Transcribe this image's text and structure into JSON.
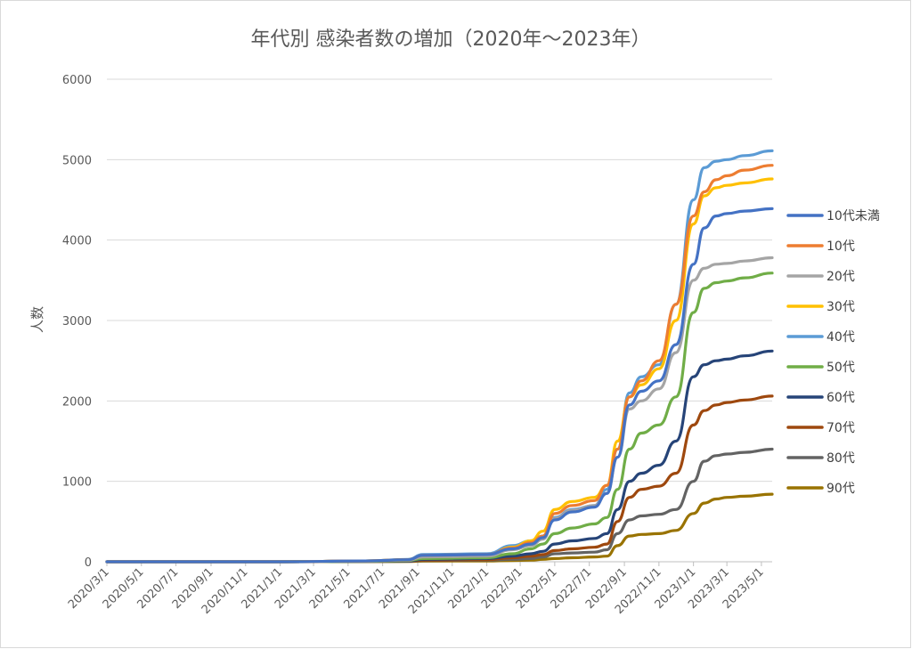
{
  "chart_data": {
    "type": "line",
    "title": "年代別 感染者数の増加（2020年〜2023年）",
    "xlabel": "",
    "ylabel": "人数",
    "ylim": [
      0,
      6000
    ],
    "yticks": [
      "0",
      "1000",
      "2000",
      "3000",
      "4000",
      "5000",
      "6000"
    ],
    "xlim": [
      "2020-03-01",
      "2023-05-20"
    ],
    "x_tick_labels": [
      "2020/3/1",
      "2020/5/1",
      "2020/7/1",
      "2020/9/1",
      "2020/11/1",
      "2021/1/1",
      "2021/3/1",
      "2021/5/1",
      "2021/7/1",
      "2021/9/1",
      "2021/11/1",
      "2022/1/1",
      "2022/3/1",
      "2022/5/1",
      "2022/7/1",
      "2022/9/1",
      "2022/11/1",
      "2023/1/1",
      "2023/3/1",
      "2023/5/1"
    ],
    "x_tick_dates": [
      "2020-03-01",
      "2020-05-01",
      "2020-07-01",
      "2020-09-01",
      "2020-11-01",
      "2021-01-01",
      "2021-03-01",
      "2021-05-01",
      "2021-07-01",
      "2021-09-01",
      "2021-11-01",
      "2022-01-01",
      "2022-03-01",
      "2022-05-01",
      "2022-07-01",
      "2022-09-01",
      "2022-11-01",
      "2023-01-01",
      "2023-03-01",
      "2023-05-01"
    ],
    "grid": true,
    "legend_position": "right",
    "x": [
      "2020-03-01",
      "2021-01-01",
      "2021-06-01",
      "2021-08-15",
      "2021-09-10",
      "2022-01-01",
      "2022-02-15",
      "2022-03-20",
      "2022-04-10",
      "2022-05-01",
      "2022-06-01",
      "2022-07-10",
      "2022-08-01",
      "2022-08-20",
      "2022-09-10",
      "2022-10-01",
      "2022-11-01",
      "2022-12-01",
      "2023-01-01",
      "2023-01-20",
      "2023-02-10",
      "2023-03-01",
      "2023-04-01",
      "2023-05-20"
    ],
    "series": [
      {
        "name": "10代未満",
        "color": "#4472C4",
        "values": [
          0,
          0,
          10,
          25,
          80,
          90,
          160,
          220,
          300,
          520,
          620,
          680,
          850,
          1300,
          1950,
          2120,
          2250,
          2700,
          3700,
          4150,
          4300,
          4330,
          4360,
          4390
        ]
      },
      {
        "name": "10代",
        "color": "#ED7D31",
        "values": [
          0,
          0,
          10,
          25,
          80,
          90,
          170,
          240,
          320,
          600,
          700,
          760,
          950,
          1400,
          2050,
          2250,
          2500,
          3200,
          4300,
          4600,
          4750,
          4800,
          4870,
          4930
        ]
      },
      {
        "name": "20代",
        "color": "#A5A5A5",
        "values": [
          0,
          0,
          10,
          20,
          60,
          70,
          150,
          200,
          280,
          540,
          640,
          700,
          850,
          1300,
          1900,
          2000,
          2150,
          2600,
          3500,
          3650,
          3700,
          3710,
          3740,
          3780
        ]
      },
      {
        "name": "30代",
        "color": "#FFC000",
        "values": [
          0,
          0,
          10,
          25,
          70,
          80,
          180,
          260,
          380,
          650,
          750,
          800,
          950,
          1500,
          2050,
          2200,
          2400,
          3000,
          4200,
          4550,
          4650,
          4680,
          4710,
          4760
        ]
      },
      {
        "name": "40代",
        "color": "#5B9BD5",
        "values": [
          0,
          0,
          10,
          30,
          90,
          100,
          200,
          260,
          320,
          550,
          650,
          700,
          900,
          1400,
          2100,
          2300,
          2450,
          3200,
          4500,
          4900,
          4980,
          5000,
          5050,
          5110
        ]
      },
      {
        "name": "50代",
        "color": "#70AD47",
        "values": [
          0,
          0,
          5,
          15,
          40,
          50,
          100,
          160,
          220,
          350,
          420,
          470,
          550,
          900,
          1400,
          1600,
          1700,
          2050,
          3100,
          3400,
          3470,
          3490,
          3530,
          3590
        ]
      },
      {
        "name": "60代",
        "color": "#264478",
        "values": [
          0,
          0,
          5,
          10,
          30,
          40,
          70,
          100,
          130,
          220,
          260,
          290,
          350,
          650,
          1000,
          1100,
          1200,
          1500,
          2300,
          2450,
          2500,
          2520,
          2560,
          2620
        ]
      },
      {
        "name": "70代",
        "color": "#9E480E",
        "values": [
          0,
          0,
          5,
          8,
          20,
          25,
          50,
          70,
          90,
          140,
          160,
          180,
          220,
          500,
          800,
          900,
          940,
          1100,
          1700,
          1880,
          1950,
          1980,
          2010,
          2060
        ]
      },
      {
        "name": "80代",
        "color": "#636363",
        "values": [
          0,
          0,
          3,
          5,
          15,
          20,
          30,
          40,
          60,
          100,
          110,
          120,
          150,
          350,
          520,
          570,
          590,
          650,
          1000,
          1250,
          1320,
          1340,
          1360,
          1400
        ]
      },
      {
        "name": "90代",
        "color": "#997300",
        "values": [
          0,
          0,
          2,
          3,
          8,
          10,
          15,
          20,
          30,
          40,
          50,
          60,
          70,
          200,
          320,
          340,
          350,
          390,
          600,
          730,
          780,
          800,
          815,
          840
        ]
      }
    ]
  }
}
